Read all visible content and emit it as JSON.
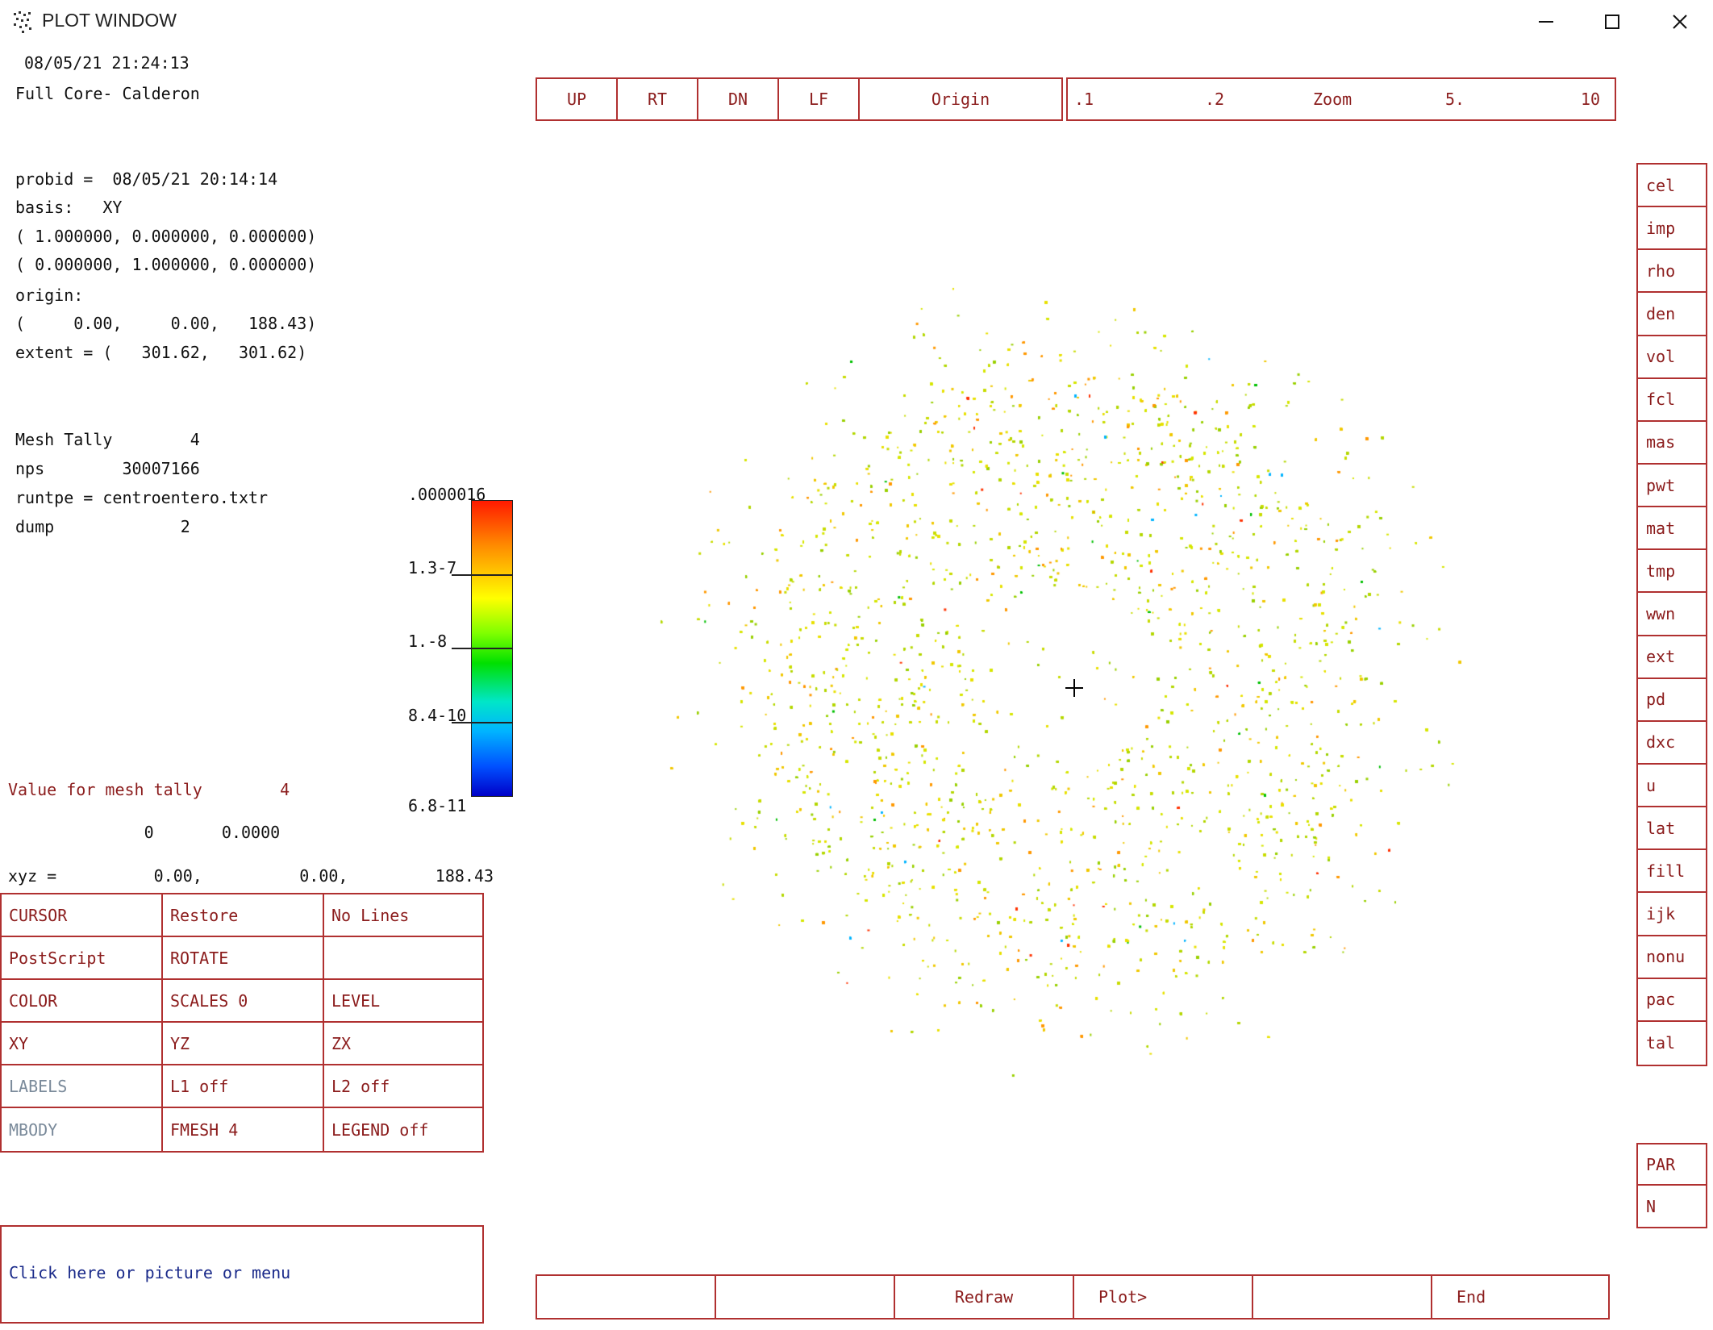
{
  "window": {
    "title": "PLOT WINDOW",
    "controls": [
      "minimize",
      "maximize",
      "close"
    ]
  },
  "info": {
    "datetime": "08/05/21 21:24:13",
    "case_title": "Full Core- Calderon",
    "probid": "probid =  08/05/21 20:14:14",
    "basis": "basis:   XY",
    "basis_vec1": "( 1.000000, 0.000000, 0.000000)",
    "basis_vec2": "( 0.000000, 1.000000, 0.000000)",
    "origin_label": "origin:",
    "origin_values": "(     0.00,     0.00,   188.43)",
    "extent": "extent = (   301.62,   301.62)",
    "mesh_tally": "Mesh Tally        4",
    "nps": "nps        30007166",
    "runtpe": "runtpe = centroentero.txtr",
    "dump": "dump             2"
  },
  "value_section": {
    "title": "Value for mesh tally        4",
    "values": "              0       0.0000",
    "xyz": "xyz =          0.00,          0.00,         188.43"
  },
  "legend": {
    "max": ".0000016",
    "labels": [
      "1.3-7",
      "1.-8",
      "8.4-10",
      "6.8-11"
    ]
  },
  "nav_buttons": [
    "UP",
    "RT",
    "DN",
    "LF",
    "Origin"
  ],
  "zoom_bar": [
    ".1",
    ".2",
    "Zoom",
    "5.",
    "10"
  ],
  "right_buttons": [
    "cel",
    "imp",
    "rho",
    "den",
    "vol",
    "fcl",
    "mas",
    "pwt",
    "mat",
    "tmp",
    "wwn",
    "ext",
    "pd",
    "dxc",
    "u",
    "lat",
    "fill",
    "ijk",
    "nonu",
    "pac",
    "tal"
  ],
  "right_buttons_2": [
    "PAR",
    "N"
  ],
  "menu": [
    [
      "CURSOR",
      "Restore",
      "No Lines"
    ],
    [
      "PostScript",
      "ROTATE",
      ""
    ],
    [
      "COLOR",
      "SCALES 0",
      "LEVEL"
    ],
    [
      "XY",
      "YZ",
      "ZX"
    ],
    [
      "LABELS",
      "L1 off",
      "L2 off"
    ],
    [
      "MBODY",
      "FMESH    4",
      "LEGEND off"
    ]
  ],
  "prompt": "Click here or picture or menu",
  "bottom_buttons": [
    "",
    "",
    "Redraw",
    "Plot>",
    "",
    "End"
  ],
  "colors": {
    "frame_red": "#b03030",
    "menu_text": "#8b1c1c",
    "prompt_text": "#1a2a8a",
    "dot_palette": [
      "#d6e600",
      "#c8dc00",
      "#e8e000",
      "#b4d700",
      "#f0c800",
      "#9ad000",
      "#ff9900",
      "#ff3300",
      "#00c000",
      "#00b4ff"
    ]
  }
}
